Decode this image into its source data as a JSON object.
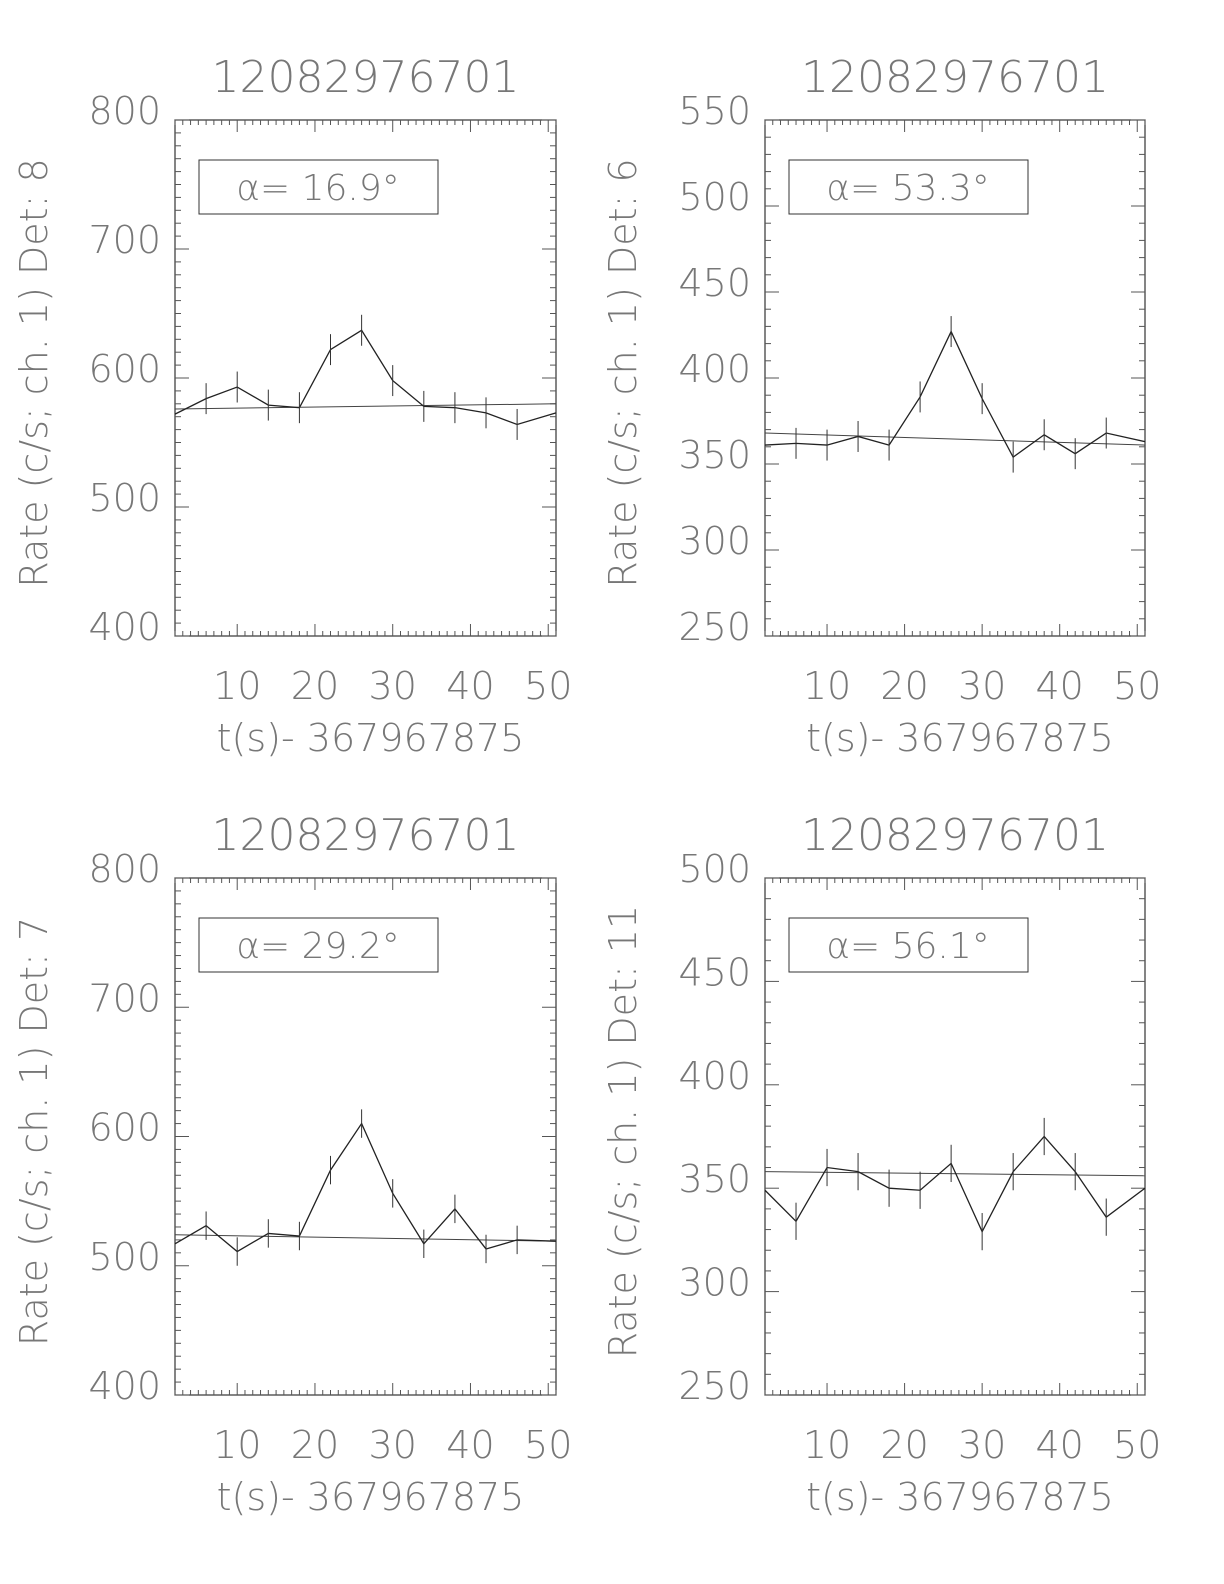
{
  "chart_data": [
    {
      "type": "line",
      "title": "12082976701",
      "xlabel": "t(s)- 367967875",
      "ylabel": "Rate (c/s; ch. 1) Det: 8",
      "annotation": "α= 16.9°",
      "xlim": [
        2,
        51
      ],
      "ylim": [
        400,
        800
      ],
      "xticks": [
        10,
        20,
        30,
        40,
        50
      ],
      "yticks": [
        400,
        500,
        600,
        700,
        800
      ],
      "x": [
        2,
        6,
        10,
        14,
        18,
        22,
        26,
        30,
        34,
        38,
        42,
        46,
        51
      ],
      "y": [
        572,
        584,
        593,
        579,
        577,
        622,
        637,
        598,
        578,
        577,
        573,
        564,
        573
      ],
      "yerr": 12,
      "fit": {
        "x": [
          2,
          51
        ],
        "y": [
          576,
          580
        ]
      }
    },
    {
      "type": "line",
      "title": "12082976701",
      "xlabel": "t(s)- 367967875",
      "ylabel": "Rate (c/s; ch. 1) Det: 6",
      "annotation": "α= 53.3°",
      "xlim": [
        2,
        51
      ],
      "ylim": [
        250,
        550
      ],
      "xticks": [
        10,
        20,
        30,
        40,
        50
      ],
      "yticks": [
        250,
        300,
        350,
        400,
        450,
        500,
        550
      ],
      "x": [
        2,
        6,
        10,
        14,
        18,
        22,
        26,
        30,
        34,
        38,
        42,
        46,
        51
      ],
      "y": [
        361,
        362,
        361,
        366,
        361,
        389,
        427,
        388,
        354,
        367,
        356,
        368,
        363
      ],
      "yerr": 9,
      "fit": {
        "x": [
          2,
          51
        ],
        "y": [
          368,
          361
        ]
      }
    },
    {
      "type": "line",
      "title": "12082976701",
      "xlabel": "t(s)- 367967875",
      "ylabel": "Rate (c/s; ch. 1) Det: 7",
      "annotation": "α= 29.2°",
      "xlim": [
        2,
        51
      ],
      "ylim": [
        400,
        800
      ],
      "xticks": [
        10,
        20,
        30,
        40,
        50
      ],
      "yticks": [
        400,
        500,
        600,
        700,
        800
      ],
      "x": [
        2,
        6,
        10,
        14,
        18,
        22,
        26,
        30,
        34,
        38,
        42,
        46,
        51
      ],
      "y": [
        517,
        531,
        511,
        525,
        523,
        574,
        610,
        556,
        517,
        544,
        513,
        520,
        519
      ],
      "yerr": 11,
      "fit": {
        "x": [
          2,
          51
        ],
        "y": [
          524,
          519
        ]
      }
    },
    {
      "type": "line",
      "title": "12082976701",
      "xlabel": "t(s)- 367967875",
      "ylabel": "Rate (c/s; ch. 1) Det: 11",
      "annotation": "α= 56.1°",
      "xlim": [
        2,
        51
      ],
      "ylim": [
        250,
        500
      ],
      "xticks": [
        10,
        20,
        30,
        40,
        50
      ],
      "yticks": [
        250,
        300,
        350,
        400,
        450,
        500
      ],
      "x": [
        2,
        6,
        10,
        14,
        18,
        22,
        26,
        30,
        34,
        38,
        42,
        46,
        51
      ],
      "y": [
        349,
        334,
        360,
        358,
        350,
        349,
        362,
        329,
        358,
        375,
        358,
        336,
        350
      ],
      "yerr": 9,
      "fit": {
        "x": [
          2,
          51
        ],
        "y": [
          358,
          356
        ]
      }
    }
  ]
}
